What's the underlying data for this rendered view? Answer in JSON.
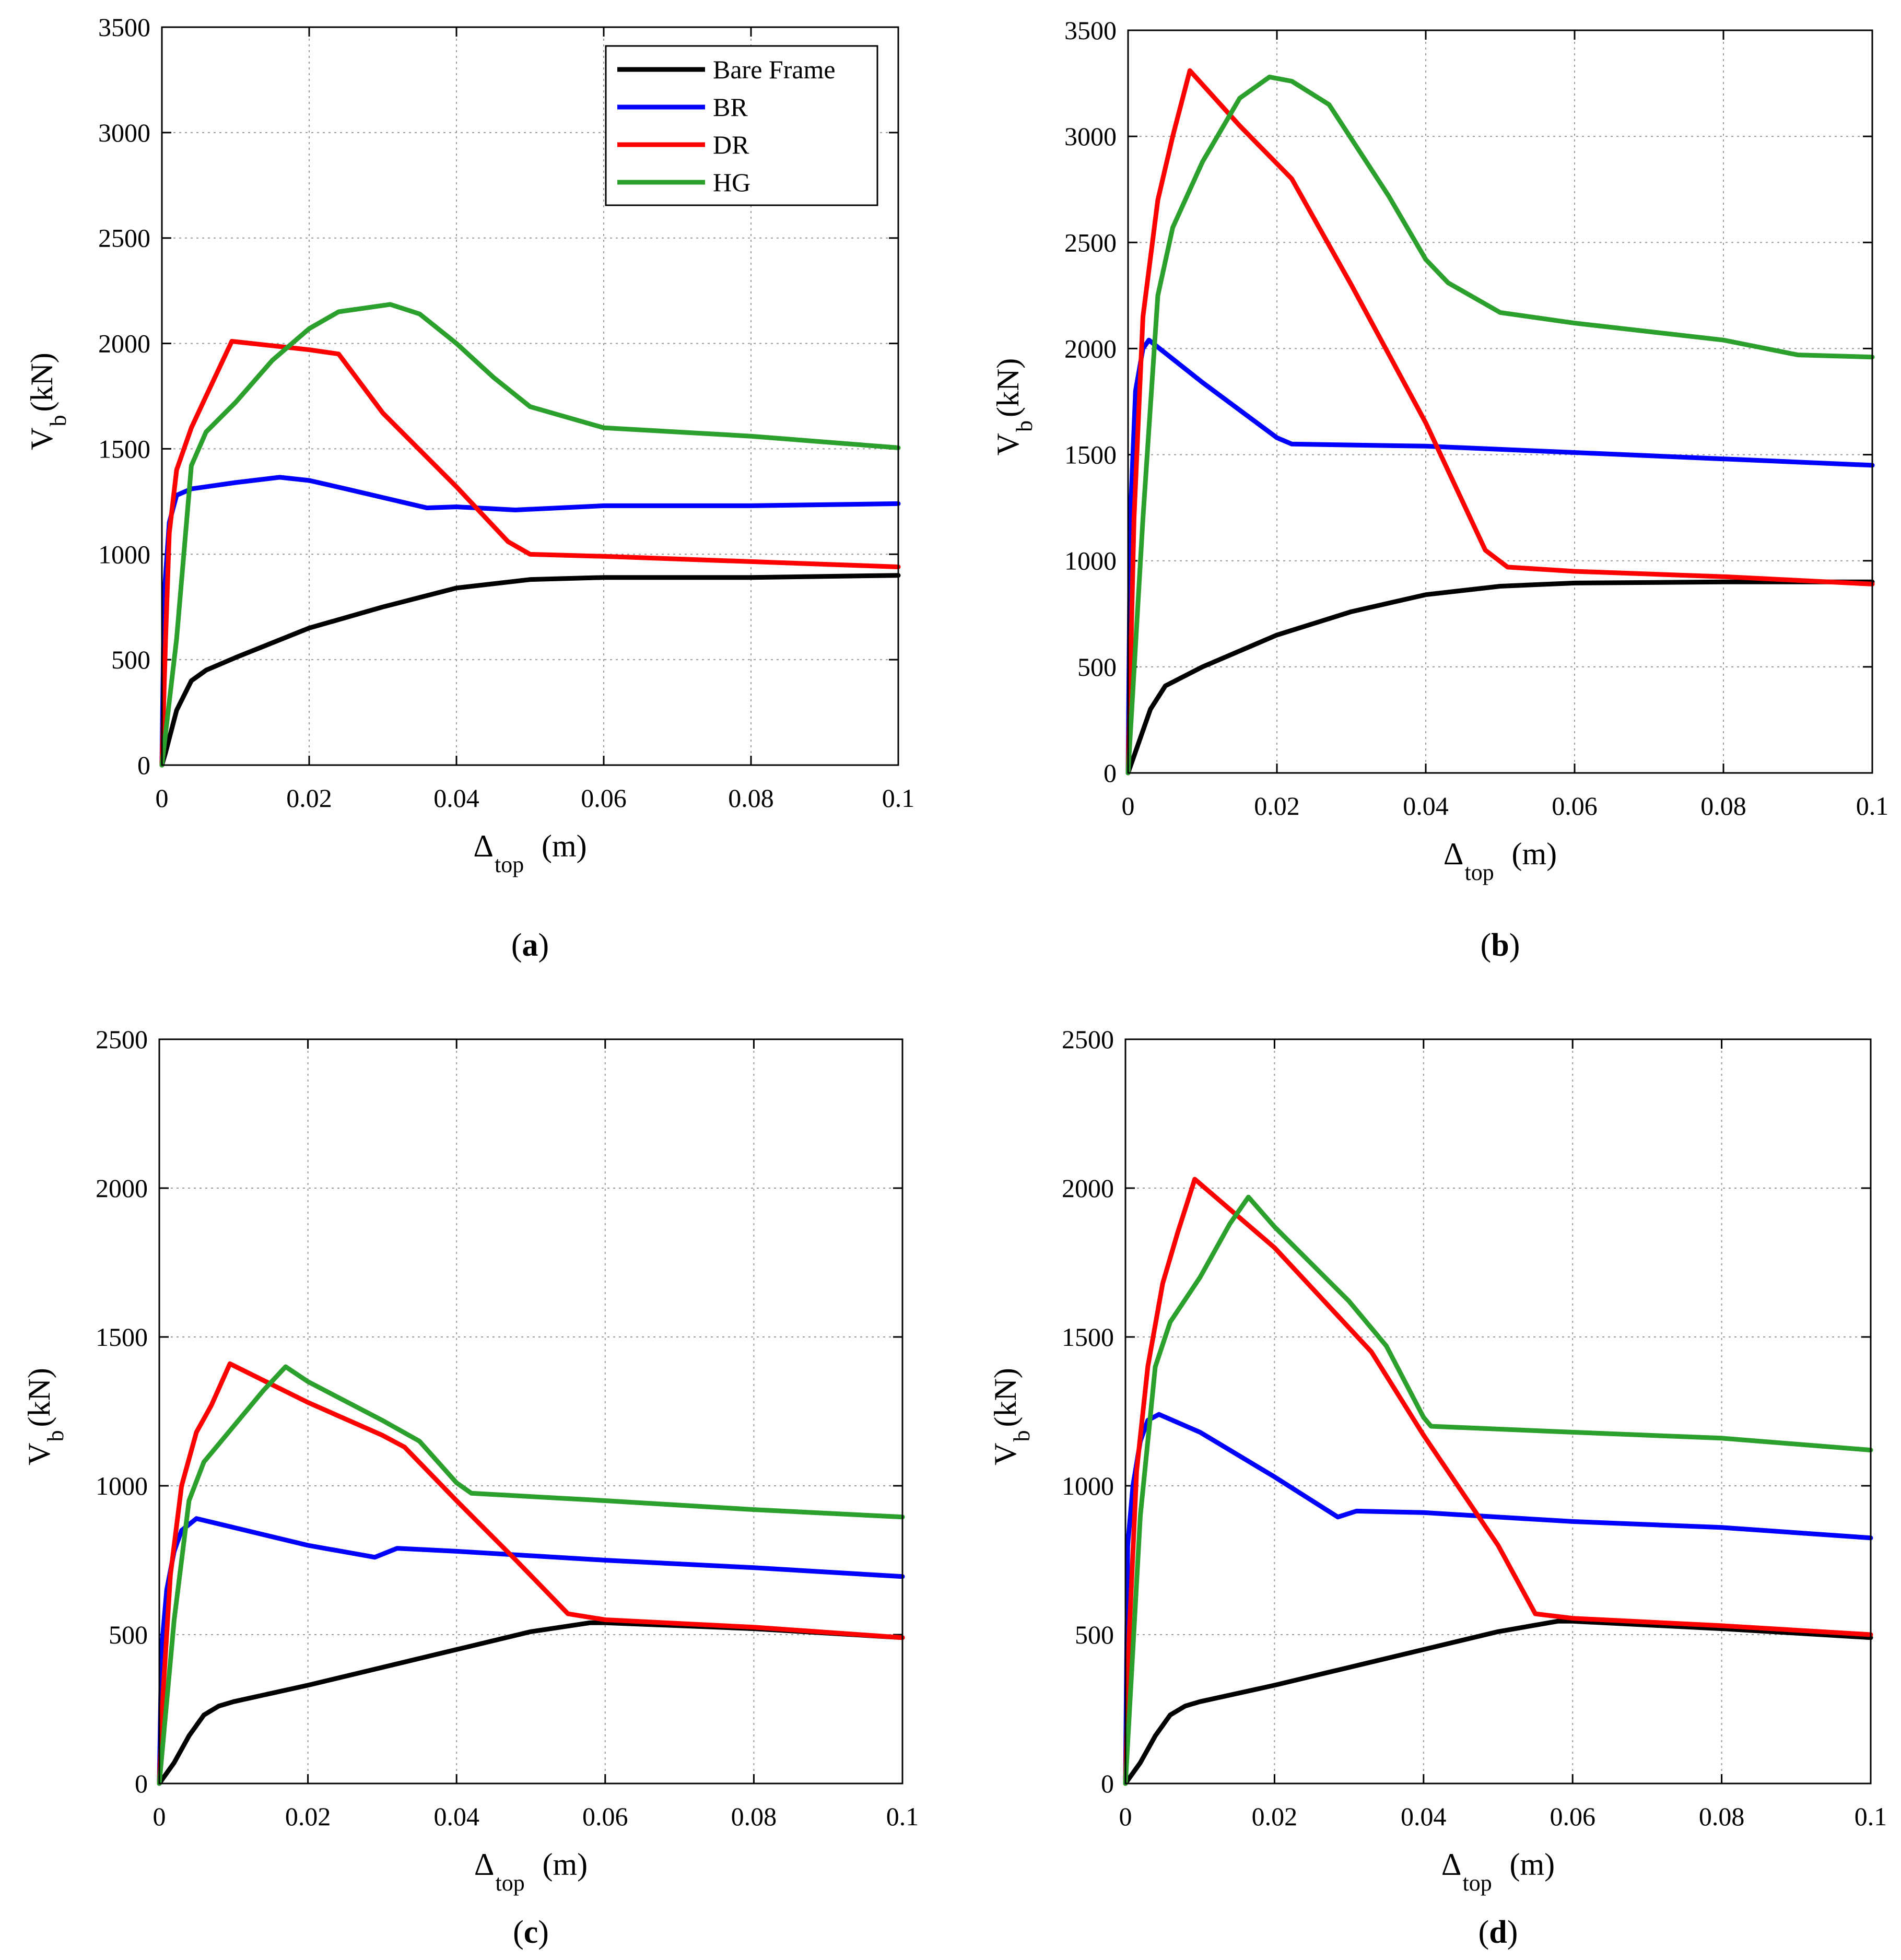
{
  "figure": {
    "legend": {
      "placement": "top-right"
    },
    "colors": {
      "Bare Frame": "#000000",
      "BR": "#0000ff",
      "DR": "#ff0000",
      "HG": "#2ca02c"
    }
  },
  "chart_data": [
    {
      "id": "a",
      "type": "line",
      "caption_letter": "a",
      "ylabel_main": "V",
      "ylabel_sub": "b",
      "ylabel_unit": "(kN)",
      "xlabel_main": "Δ",
      "xlabel_sub": "top",
      "xlabel_unit": "(m)",
      "xlim": [
        0,
        0.1
      ],
      "ylim": [
        0,
        3500
      ],
      "xticks": [
        "0",
        "0.02",
        "0.04",
        "0.06",
        "0.08",
        "0.1"
      ],
      "yticks": [
        "0",
        "500",
        "1000",
        "1500",
        "2000",
        "2500",
        "3000",
        "3500"
      ],
      "show_legend": true,
      "series": [
        {
          "name": "Bare Frame",
          "x": [
            0,
            0.0005,
            0.002,
            0.004,
            0.006,
            0.01,
            0.02,
            0.03,
            0.04,
            0.05,
            0.06,
            0.08,
            0.1
          ],
          "values": [
            0,
            60,
            260,
            400,
            450,
            510,
            650,
            750,
            840,
            880,
            890,
            890,
            900
          ]
        },
        {
          "name": "BR",
          "x": [
            0,
            0.0003,
            0.001,
            0.002,
            0.004,
            0.01,
            0.016,
            0.02,
            0.025,
            0.036,
            0.04,
            0.048,
            0.06,
            0.08,
            0.1
          ],
          "values": [
            0,
            800,
            1150,
            1280,
            1310,
            1340,
            1365,
            1350,
            1310,
            1220,
            1225,
            1210,
            1230,
            1230,
            1240
          ]
        },
        {
          "name": "DR",
          "x": [
            0,
            0.0005,
            0.001,
            0.002,
            0.004,
            0.006,
            0.0095,
            0.02,
            0.024,
            0.03,
            0.04,
            0.047,
            0.05,
            0.06,
            0.1
          ],
          "values": [
            0,
            600,
            1100,
            1400,
            1600,
            1750,
            2010,
            1970,
            1950,
            1670,
            1320,
            1060,
            1000,
            990,
            940
          ]
        },
        {
          "name": "HG",
          "x": [
            0,
            0.002,
            0.004,
            0.006,
            0.01,
            0.015,
            0.02,
            0.024,
            0.031,
            0.035,
            0.04,
            0.045,
            0.05,
            0.06,
            0.08,
            0.1
          ],
          "values": [
            0,
            600,
            1420,
            1580,
            1720,
            1920,
            2070,
            2150,
            2185,
            2140,
            2000,
            1840,
            1700,
            1600,
            1560,
            1505
          ]
        }
      ]
    },
    {
      "id": "b",
      "type": "line",
      "caption_letter": "b",
      "ylabel_main": "V",
      "ylabel_sub": "b",
      "ylabel_unit": "(kN)",
      "xlabel_main": "Δ",
      "xlabel_sub": "top",
      "xlabel_unit": "(m)",
      "xlim": [
        0,
        0.1
      ],
      "ylim": [
        0,
        3500
      ],
      "xticks": [
        "0",
        "0.02",
        "0.04",
        "0.06",
        "0.08",
        "0.1"
      ],
      "yticks": [
        "0",
        "500",
        "1000",
        "1500",
        "2000",
        "2500",
        "3000",
        "3500"
      ],
      "show_legend": false,
      "series": [
        {
          "name": "Bare Frame",
          "x": [
            0,
            0.001,
            0.003,
            0.005,
            0.01,
            0.02,
            0.03,
            0.04,
            0.05,
            0.06,
            0.08,
            0.1
          ],
          "values": [
            0,
            100,
            300,
            410,
            500,
            650,
            760,
            840,
            880,
            895,
            900,
            900
          ]
        },
        {
          "name": "BR",
          "x": [
            0,
            0.0003,
            0.001,
            0.002,
            0.0028,
            0.01,
            0.02,
            0.022,
            0.04,
            0.06,
            0.08,
            0.1
          ],
          "values": [
            0,
            1200,
            1800,
            2000,
            2040,
            1840,
            1580,
            1550,
            1540,
            1510,
            1480,
            1450
          ]
        },
        {
          "name": "DR",
          "x": [
            0,
            0.0008,
            0.002,
            0.004,
            0.006,
            0.0083,
            0.015,
            0.022,
            0.03,
            0.04,
            0.048,
            0.051,
            0.06,
            0.08,
            0.1
          ],
          "values": [
            0,
            1200,
            2150,
            2700,
            3000,
            3310,
            3050,
            2800,
            2300,
            1650,
            1050,
            970,
            950,
            925,
            890
          ]
        },
        {
          "name": "HG",
          "x": [
            0,
            0.002,
            0.004,
            0.006,
            0.01,
            0.015,
            0.019,
            0.022,
            0.027,
            0.035,
            0.04,
            0.043,
            0.05,
            0.06,
            0.08,
            0.09,
            0.1
          ],
          "values": [
            0,
            1200,
            2250,
            2570,
            2880,
            3180,
            3280,
            3260,
            3150,
            2720,
            2420,
            2310,
            2170,
            2120,
            2040,
            1970,
            1960
          ]
        }
      ]
    },
    {
      "id": "c",
      "type": "line",
      "caption_letter": "c",
      "ylabel_main": "V",
      "ylabel_sub": "b",
      "ylabel_unit": "(kN)",
      "xlabel_main": "Δ",
      "xlabel_sub": "top",
      "xlabel_unit": "(m)",
      "xlim": [
        0,
        0.1
      ],
      "ylim": [
        0,
        2500
      ],
      "xticks": [
        "0",
        "0.02",
        "0.04",
        "0.06",
        "0.08",
        "0.1"
      ],
      "yticks": [
        "0",
        "500",
        "1000",
        "1500",
        "2000",
        "2500"
      ],
      "show_legend": false,
      "series": [
        {
          "name": "Bare Frame",
          "x": [
            0,
            0.002,
            0.004,
            0.006,
            0.008,
            0.01,
            0.02,
            0.03,
            0.04,
            0.05,
            0.058,
            0.06,
            0.08,
            0.1
          ],
          "values": [
            0,
            70,
            160,
            230,
            260,
            275,
            330,
            390,
            450,
            510,
            540,
            540,
            520,
            490
          ]
        },
        {
          "name": "BR",
          "x": [
            0,
            0.0003,
            0.001,
            0.002,
            0.003,
            0.005,
            0.01,
            0.02,
            0.029,
            0.032,
            0.04,
            0.06,
            0.08,
            0.1
          ],
          "values": [
            0,
            450,
            650,
            780,
            850,
            890,
            860,
            800,
            760,
            790,
            780,
            750,
            725,
            695
          ]
        },
        {
          "name": "DR",
          "x": [
            0,
            0.0005,
            0.0015,
            0.003,
            0.005,
            0.007,
            0.0095,
            0.02,
            0.03,
            0.033,
            0.04,
            0.048,
            0.055,
            0.06,
            0.08,
            0.1
          ],
          "values": [
            0,
            300,
            700,
            1000,
            1180,
            1270,
            1410,
            1280,
            1170,
            1130,
            950,
            750,
            570,
            550,
            525,
            490
          ]
        },
        {
          "name": "HG",
          "x": [
            0,
            0.002,
            0.004,
            0.006,
            0.01,
            0.014,
            0.017,
            0.02,
            0.03,
            0.035,
            0.04,
            0.042,
            0.06,
            0.08,
            0.1
          ],
          "values": [
            0,
            550,
            950,
            1080,
            1200,
            1320,
            1400,
            1350,
            1220,
            1150,
            1010,
            975,
            950,
            920,
            895
          ]
        }
      ]
    },
    {
      "id": "d",
      "type": "line",
      "caption_letter": "d",
      "ylabel_main": "V",
      "ylabel_sub": "b",
      "ylabel_unit": "(kN)",
      "xlabel_main": "Δ",
      "xlabel_sub": "top",
      "xlabel_unit": "(m)",
      "xlim": [
        0,
        0.1
      ],
      "ylim": [
        0,
        2500
      ],
      "xticks": [
        "0",
        "0.02",
        "0.04",
        "0.06",
        "0.08",
        "0.1"
      ],
      "yticks": [
        "0",
        "500",
        "1000",
        "1500",
        "2000",
        "2500"
      ],
      "show_legend": false,
      "series": [
        {
          "name": "Bare Frame",
          "x": [
            0,
            0.002,
            0.004,
            0.006,
            0.008,
            0.01,
            0.02,
            0.03,
            0.04,
            0.05,
            0.058,
            0.06,
            0.08,
            0.1
          ],
          "values": [
            0,
            70,
            160,
            230,
            260,
            275,
            330,
            390,
            450,
            510,
            545,
            545,
            520,
            490
          ]
        },
        {
          "name": "BR",
          "x": [
            0,
            0.0003,
            0.001,
            0.002,
            0.003,
            0.0045,
            0.01,
            0.02,
            0.0285,
            0.031,
            0.04,
            0.06,
            0.08,
            0.1
          ],
          "values": [
            0,
            800,
            1000,
            1150,
            1220,
            1240,
            1180,
            1030,
            895,
            915,
            910,
            880,
            860,
            825
          ]
        },
        {
          "name": "DR",
          "x": [
            0,
            0.0005,
            0.0015,
            0.003,
            0.005,
            0.007,
            0.0093,
            0.02,
            0.033,
            0.04,
            0.05,
            0.055,
            0.06,
            0.08,
            0.1
          ],
          "values": [
            0,
            500,
            1050,
            1400,
            1680,
            1850,
            2030,
            1800,
            1450,
            1170,
            800,
            570,
            555,
            530,
            500
          ]
        },
        {
          "name": "HG",
          "x": [
            0,
            0.002,
            0.004,
            0.006,
            0.01,
            0.014,
            0.0165,
            0.02,
            0.03,
            0.035,
            0.04,
            0.041,
            0.06,
            0.08,
            0.1
          ],
          "values": [
            0,
            900,
            1400,
            1550,
            1700,
            1880,
            1970,
            1870,
            1620,
            1470,
            1230,
            1200,
            1180,
            1160,
            1120
          ]
        }
      ]
    }
  ]
}
